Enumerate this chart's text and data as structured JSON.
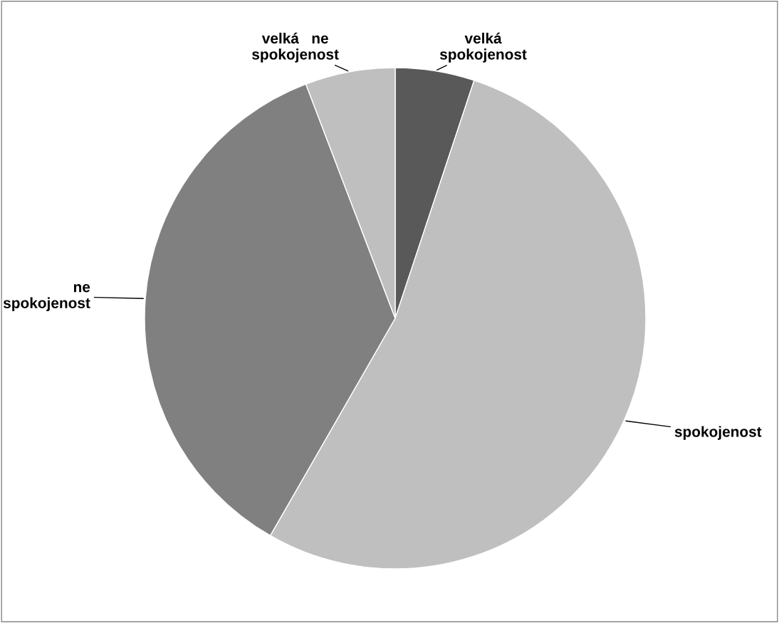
{
  "chart_data": {
    "type": "pie",
    "categories": [
      "velká\nspokojenost",
      "spokojenost",
      "ne\nspokojenost",
      "velká   ne\nspokojenost"
    ],
    "values": [
      5.1,
      53.2,
      35.9,
      5.8
    ],
    "colors": [
      "#595959",
      "#bfbfbf",
      "#808080",
      "#bfbfbf"
    ],
    "legend": false
  }
}
